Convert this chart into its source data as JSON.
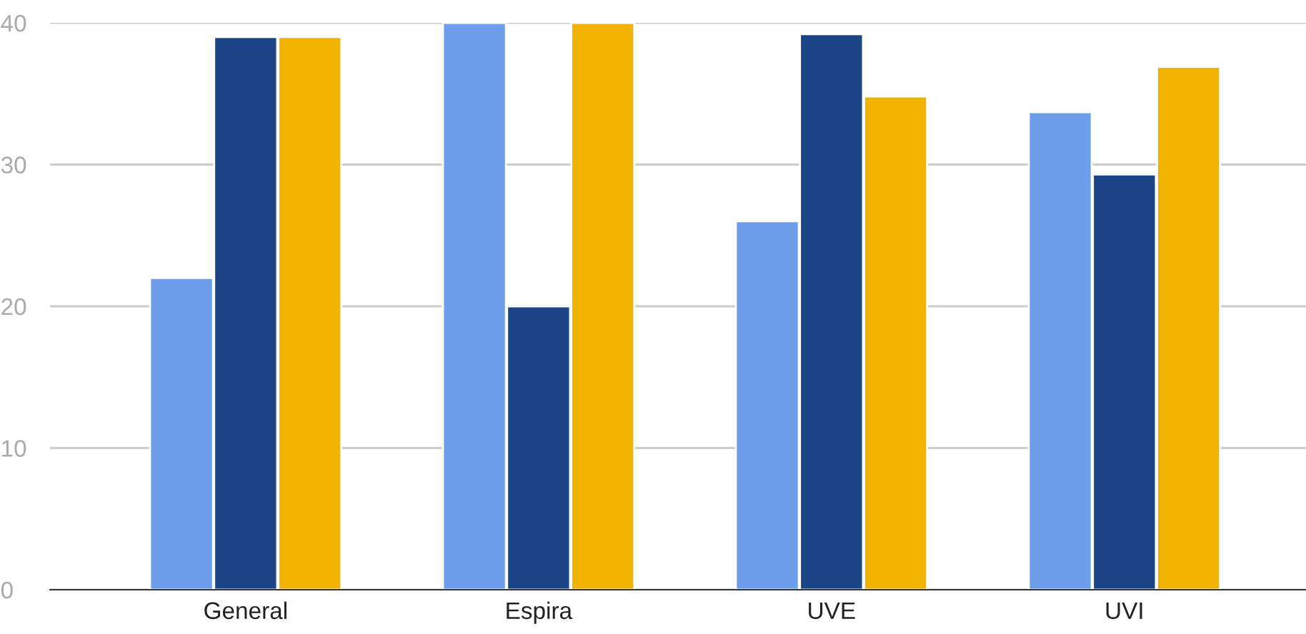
{
  "chart_data": {
    "type": "bar",
    "categories": [
      "General",
      "Espira",
      "UVE",
      "UVI"
    ],
    "series": [
      {
        "color": "#6d9eeb",
        "values": [
          22,
          40,
          26,
          33.7
        ]
      },
      {
        "color": "#1c4587",
        "values": [
          39,
          20,
          39.2,
          29.3
        ]
      },
      {
        "color": "#f1b300",
        "values": [
          39,
          40,
          34.8,
          36.9
        ]
      }
    ],
    "ylim": [
      0,
      40
    ],
    "yticks": [
      0,
      10,
      20,
      30,
      40
    ],
    "grid": "y"
  }
}
